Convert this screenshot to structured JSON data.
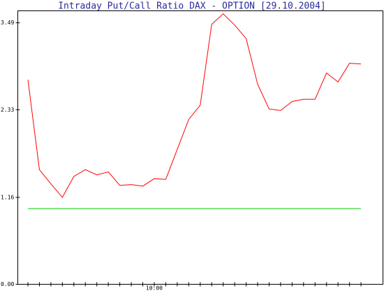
{
  "chart_data": {
    "type": "line",
    "title": "Intraday Put/Call Ratio DAX - OPTION [29.10.2004]",
    "categories": [
      null,
      null,
      null,
      null,
      null,
      null,
      null,
      null,
      null,
      null,
      null,
      "10:00",
      null,
      null,
      null,
      null,
      null,
      null,
      null,
      null,
      null,
      null,
      null,
      null,
      null,
      null,
      null,
      null,
      null,
      null
    ],
    "lines": [
      {
        "color": "#ff0000",
        "values": [
          2.73,
          1.53,
          1.34,
          1.16,
          1.44,
          1.53,
          1.46,
          1.5,
          1.32,
          1.33,
          1.31,
          1.41,
          1.4,
          1.8,
          2.2,
          2.39,
          3.47,
          3.61,
          3.46,
          3.28,
          2.67,
          2.34,
          2.32,
          2.44,
          2.47,
          2.47,
          2.82,
          2.7,
          2.95,
          2.94
        ]
      },
      {
        "color": "#00cc00",
        "values": [
          1.01,
          1.01,
          1.01,
          1.01,
          1.01,
          1.01,
          1.01,
          1.01,
          1.01,
          1.01,
          1.01,
          1.01,
          1.01,
          1.01,
          1.01,
          1.01,
          1.01,
          1.01,
          1.01,
          1.01,
          1.01,
          1.01,
          1.01,
          1.01,
          1.01,
          1.01,
          1.01,
          1.01,
          1.01,
          1.01
        ]
      }
    ],
    "ylim": [
      0,
      3.65
    ],
    "yticks": [
      {
        "value": 0,
        "label": "0.00"
      },
      1.16,
      2.33,
      3.49
    ]
  }
}
